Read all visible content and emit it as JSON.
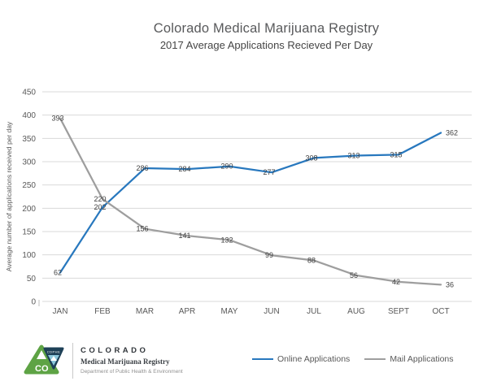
{
  "header": {
    "title": "Colorado Medical Marijuana Registry",
    "subtitle": "2017 Average Applications Recieved Per Day"
  },
  "chart_data": {
    "type": "line",
    "title": "Colorado Medical Marijuana Registry",
    "subtitle": "2017 Average Applications Recieved Per Day",
    "categories": [
      "JAN",
      "FEB",
      "MAR",
      "APR",
      "MAY",
      "JUN",
      "JUL",
      "AUG",
      "SEPT",
      "OCT"
    ],
    "series": [
      {
        "name": "Online Applications",
        "color": "#2878BE",
        "values": [
          62,
          202,
          286,
          284,
          290,
          277,
          308,
          313,
          315,
          362
        ]
      },
      {
        "name": "Mail Applications",
        "color": "#9E9E9E",
        "values": [
          393,
          220,
          156,
          141,
          132,
          99,
          88,
          56,
          42,
          36
        ]
      }
    ],
    "xlabel": "",
    "ylabel": "Average number of applications received per day",
    "ylim": [
      0,
      450
    ],
    "ytick_step": 50,
    "grid": true,
    "data_labels": true,
    "legend_position": "bottom"
  },
  "colors": {
    "grid": "#D9D9D9",
    "axis_text": "#595959",
    "data_label": "#404040",
    "tick": "#BFBFBF",
    "logo_green": "#5EA345",
    "logo_navy": "#1D4057",
    "logo_lightblue": "#8CC7DC"
  },
  "footer": {
    "logo": {
      "state_abbr": "CO",
      "badge": "CDPHE"
    },
    "org": "COLORADO",
    "program": "Medical Marijuana Registry",
    "department": "Department of Public Health & Environment"
  }
}
